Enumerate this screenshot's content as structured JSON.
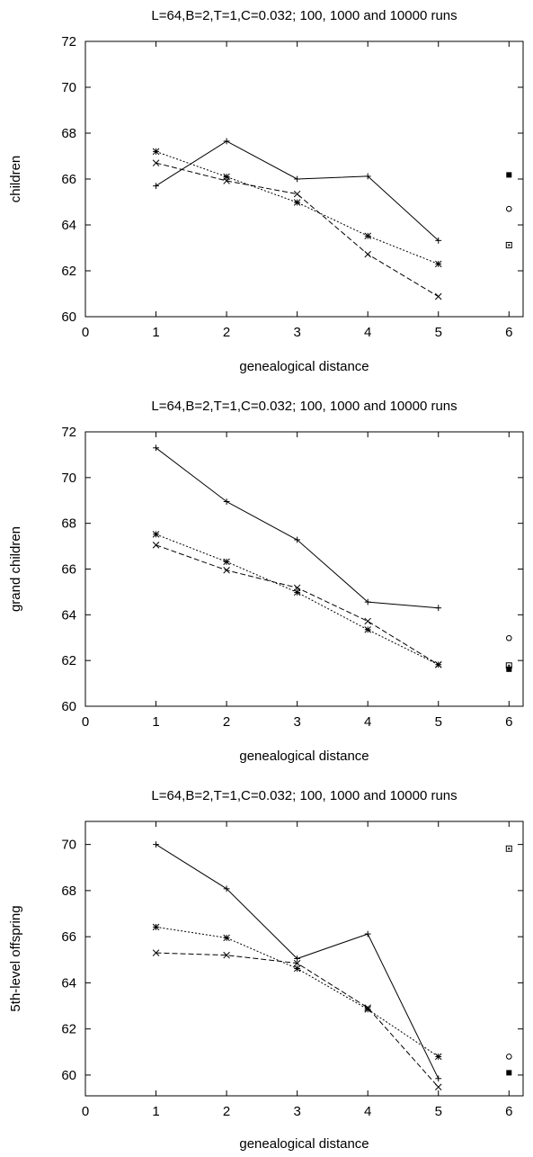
{
  "chart_data": [
    {
      "type": "line",
      "title": "L=64,B=2,T=1,C=0.032; 100, 1000 and 10000 runs",
      "xlabel": "genealogical distance",
      "ylabel": "children",
      "xlim": [
        0,
        6.2
      ],
      "ylim": [
        60,
        72
      ],
      "xticks": [
        0,
        1,
        2,
        3,
        4,
        5,
        6
      ],
      "yticks": [
        60,
        62,
        64,
        66,
        68,
        70,
        72
      ],
      "series": [
        {
          "style": "solid",
          "marker": "plus",
          "x": [
            1,
            2,
            3,
            4,
            5
          ],
          "y": [
            65.7,
            67.65,
            66.0,
            66.12,
            63.32
          ]
        },
        {
          "style": "dashed",
          "marker": "cross",
          "x": [
            1,
            2,
            3,
            4,
            5
          ],
          "y": [
            66.7,
            65.92,
            65.35,
            62.72,
            60.88
          ]
        },
        {
          "style": "dotted",
          "marker": "star",
          "x": [
            1,
            2,
            3,
            4,
            5
          ],
          "y": [
            67.2,
            66.1,
            64.98,
            63.52,
            62.3
          ]
        }
      ],
      "extra_points": [
        {
          "marker": "filled-square",
          "x": 6,
          "y": 66.18
        },
        {
          "marker": "circle",
          "x": 6,
          "y": 64.7
        },
        {
          "marker": "square",
          "x": 6,
          "y": 63.12
        }
      ]
    },
    {
      "type": "line",
      "title": "L=64,B=2,T=1,C=0.032; 100, 1000 and 10000 runs",
      "xlabel": "genealogical distance",
      "ylabel": "grand children",
      "xlim": [
        0,
        6.2
      ],
      "ylim": [
        60,
        72
      ],
      "xticks": [
        0,
        1,
        2,
        3,
        4,
        5,
        6
      ],
      "yticks": [
        60,
        62,
        64,
        66,
        68,
        70,
        72
      ],
      "series": [
        {
          "style": "solid",
          "marker": "plus",
          "x": [
            1,
            2,
            3,
            4,
            5
          ],
          "y": [
            71.3,
            68.95,
            67.28,
            64.56,
            64.3
          ]
        },
        {
          "style": "dashed",
          "marker": "cross",
          "x": [
            1,
            2,
            3,
            4,
            5
          ],
          "y": [
            67.05,
            65.95,
            65.18,
            63.72,
            61.82
          ]
        },
        {
          "style": "dotted",
          "marker": "star",
          "x": [
            1,
            2,
            3,
            4,
            5
          ],
          "y": [
            67.52,
            66.32,
            64.98,
            63.35,
            61.82
          ]
        }
      ],
      "extra_points": [
        {
          "marker": "circle",
          "x": 6,
          "y": 62.98
        },
        {
          "marker": "square",
          "x": 6,
          "y": 61.78
        },
        {
          "marker": "filled-square",
          "x": 6,
          "y": 61.62
        }
      ]
    },
    {
      "type": "line",
      "title": "L=64,B=2,T=1,C=0.032; 100, 1000 and 10000 runs",
      "xlabel": "genealogical distance",
      "ylabel": "5th-level offspring",
      "xlim": [
        0,
        6.2
      ],
      "ylim": [
        59.1,
        71
      ],
      "xticks": [
        0,
        1,
        2,
        3,
        4,
        5,
        6
      ],
      "yticks": [
        60,
        62,
        64,
        66,
        68,
        70
      ],
      "series": [
        {
          "style": "solid",
          "marker": "plus",
          "x": [
            1,
            2,
            3,
            4,
            5
          ],
          "y": [
            70.0,
            68.08,
            65.05,
            66.12,
            59.85
          ]
        },
        {
          "style": "dashed",
          "marker": "cross",
          "x": [
            1,
            2,
            3,
            4,
            5
          ],
          "y": [
            65.3,
            65.2,
            64.85,
            62.92,
            59.48
          ]
        },
        {
          "style": "dotted",
          "marker": "star",
          "x": [
            1,
            2,
            3,
            4,
            5
          ],
          "y": [
            66.42,
            65.95,
            64.62,
            62.85,
            60.8
          ]
        }
      ],
      "extra_points": [
        {
          "marker": "square",
          "x": 6,
          "y": 69.82
        },
        {
          "marker": "circle",
          "x": 6,
          "y": 60.8
        },
        {
          "marker": "filled-square",
          "x": 6,
          "y": 60.1
        }
      ]
    }
  ]
}
